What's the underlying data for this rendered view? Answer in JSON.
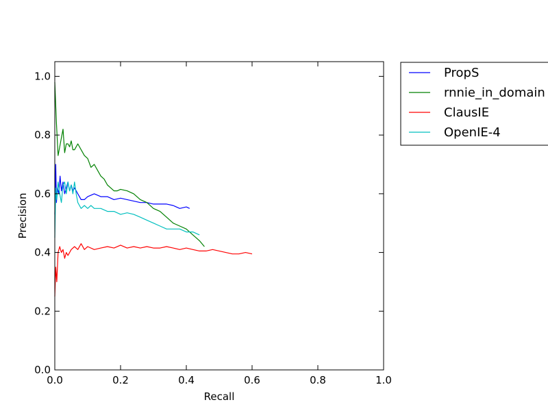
{
  "chart_data": {
    "type": "line",
    "title": "",
    "xlabel": "Recall",
    "ylabel": "Precision",
    "xlim": [
      0.0,
      1.0
    ],
    "ylim": [
      0.0,
      1.05
    ],
    "x_ticks": [
      "0.0",
      "0.2",
      "0.4",
      "0.6",
      "0.8",
      "1.0"
    ],
    "y_ticks": [
      "0.0",
      "0.2",
      "0.4",
      "0.6",
      "0.8",
      "1.0"
    ],
    "grid": false,
    "legend_position": "outside-top-right",
    "series": [
      {
        "name": "PropS",
        "color": "#0000ff",
        "x": [
          0.0,
          0.003,
          0.005,
          0.008,
          0.012,
          0.016,
          0.02,
          0.025,
          0.03,
          0.035,
          0.04,
          0.045,
          0.05,
          0.055,
          0.06,
          0.065,
          0.07,
          0.075,
          0.08,
          0.09,
          0.1,
          0.12,
          0.14,
          0.16,
          0.18,
          0.2,
          0.22,
          0.24,
          0.26,
          0.28,
          0.3,
          0.32,
          0.34,
          0.36,
          0.38,
          0.4,
          0.41
        ],
        "y": [
          0.53,
          0.7,
          0.57,
          0.62,
          0.6,
          0.66,
          0.61,
          0.64,
          0.6,
          0.62,
          0.64,
          0.61,
          0.63,
          0.61,
          0.62,
          0.61,
          0.6,
          0.59,
          0.58,
          0.58,
          0.59,
          0.6,
          0.59,
          0.59,
          0.58,
          0.585,
          0.58,
          0.575,
          0.57,
          0.57,
          0.565,
          0.565,
          0.565,
          0.56,
          0.55,
          0.555,
          0.55
        ]
      },
      {
        "name": "rnnie_in_domain",
        "color": "#008000",
        "x": [
          0.0,
          0.005,
          0.01,
          0.015,
          0.02,
          0.025,
          0.03,
          0.035,
          0.04,
          0.045,
          0.05,
          0.055,
          0.06,
          0.065,
          0.07,
          0.08,
          0.09,
          0.1,
          0.11,
          0.12,
          0.13,
          0.14,
          0.15,
          0.16,
          0.17,
          0.18,
          0.19,
          0.2,
          0.22,
          0.24,
          0.26,
          0.28,
          0.3,
          0.32,
          0.34,
          0.36,
          0.38,
          0.4,
          0.42,
          0.44,
          0.455
        ],
        "y": [
          0.98,
          0.84,
          0.73,
          0.76,
          0.79,
          0.82,
          0.74,
          0.77,
          0.77,
          0.76,
          0.78,
          0.75,
          0.75,
          0.76,
          0.77,
          0.75,
          0.73,
          0.72,
          0.69,
          0.7,
          0.68,
          0.66,
          0.65,
          0.63,
          0.62,
          0.61,
          0.61,
          0.615,
          0.61,
          0.6,
          0.58,
          0.57,
          0.55,
          0.54,
          0.52,
          0.5,
          0.49,
          0.48,
          0.46,
          0.44,
          0.42
        ]
      },
      {
        "name": "ClausIE",
        "color": "#ff0000",
        "x": [
          0.0,
          0.003,
          0.006,
          0.01,
          0.015,
          0.02,
          0.025,
          0.03,
          0.035,
          0.04,
          0.05,
          0.06,
          0.07,
          0.08,
          0.09,
          0.1,
          0.12,
          0.14,
          0.16,
          0.18,
          0.2,
          0.22,
          0.24,
          0.26,
          0.28,
          0.3,
          0.32,
          0.34,
          0.36,
          0.38,
          0.4,
          0.42,
          0.44,
          0.46,
          0.48,
          0.5,
          0.52,
          0.54,
          0.56,
          0.58,
          0.6
        ],
        "y": [
          0.25,
          0.35,
          0.3,
          0.4,
          0.42,
          0.4,
          0.41,
          0.38,
          0.4,
          0.39,
          0.41,
          0.42,
          0.41,
          0.43,
          0.41,
          0.42,
          0.41,
          0.415,
          0.42,
          0.415,
          0.425,
          0.415,
          0.42,
          0.415,
          0.42,
          0.415,
          0.415,
          0.42,
          0.415,
          0.41,
          0.415,
          0.41,
          0.405,
          0.405,
          0.41,
          0.405,
          0.4,
          0.395,
          0.395,
          0.4,
          0.395
        ]
      },
      {
        "name": "OpenIE-4",
        "color": "#00bfbf",
        "x": [
          0.0,
          0.003,
          0.006,
          0.01,
          0.015,
          0.02,
          0.025,
          0.03,
          0.035,
          0.04,
          0.045,
          0.05,
          0.055,
          0.06,
          0.065,
          0.07,
          0.075,
          0.08,
          0.09,
          0.1,
          0.11,
          0.12,
          0.14,
          0.16,
          0.18,
          0.2,
          0.22,
          0.24,
          0.26,
          0.28,
          0.3,
          0.32,
          0.34,
          0.36,
          0.38,
          0.4,
          0.42,
          0.44
        ],
        "y": [
          0.45,
          0.62,
          0.58,
          0.64,
          0.6,
          0.57,
          0.63,
          0.64,
          0.6,
          0.64,
          0.61,
          0.63,
          0.6,
          0.64,
          0.6,
          0.57,
          0.56,
          0.55,
          0.56,
          0.55,
          0.56,
          0.55,
          0.55,
          0.54,
          0.54,
          0.53,
          0.535,
          0.53,
          0.52,
          0.51,
          0.5,
          0.49,
          0.48,
          0.48,
          0.48,
          0.47,
          0.47,
          0.46
        ]
      }
    ]
  }
}
